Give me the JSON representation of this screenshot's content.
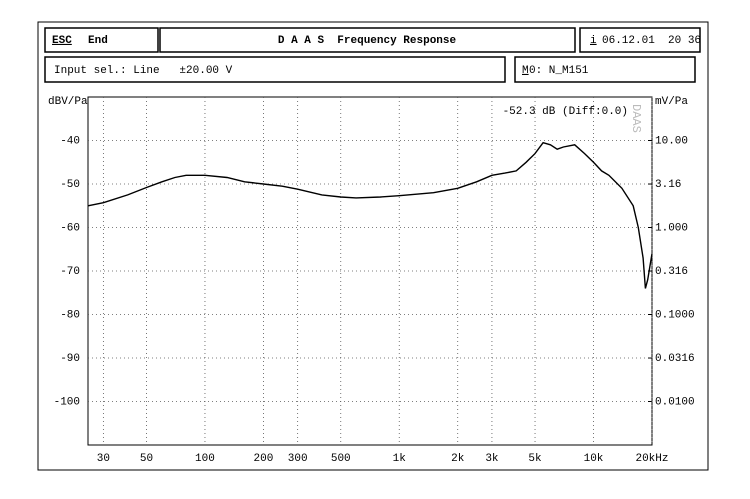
{
  "header": {
    "esc": "ESC",
    "end": "End",
    "title": "D A A S  Frequency Response",
    "info_key": "i",
    "datetime": "06.12.01  20 36"
  },
  "status": {
    "input": "Input sel.: Line   ±20.00 V",
    "memory_key": "M",
    "memory": "0: N_M151"
  },
  "chart_data": {
    "type": "line",
    "y_label": "dBV/Pa",
    "y2_label": "mV/Pa",
    "annotation": "-52.3 dB (Diff:0.0)",
    "watermark": "DAAS",
    "xscale": "log",
    "y2scale": "log",
    "grid": true,
    "color": "#000000",
    "x": [
      25,
      30,
      40,
      50,
      60,
      70,
      80,
      100,
      130,
      160,
      200,
      250,
      300,
      400,
      500,
      600,
      800,
      1000,
      1500,
      2000,
      2500,
      3000,
      3500,
      4000,
      4500,
      5000,
      5500,
      6000,
      6500,
      7000,
      8000,
      9000,
      10000,
      11000,
      12000,
      14000,
      16000,
      17000,
      18000,
      18500,
      19000,
      20000
    ],
    "values": [
      -55,
      -54.3,
      -52.5,
      -50.8,
      -49.5,
      -48.5,
      -48,
      -48,
      -48.5,
      -49.5,
      -50,
      -50.5,
      -51.2,
      -52.5,
      -53,
      -53.2,
      -53,
      -52.7,
      -52,
      -51,
      -49.5,
      -48,
      -47.5,
      -47,
      -45,
      -43,
      -40.5,
      -41,
      -42,
      -41.5,
      -41,
      -43,
      -45,
      -47,
      -48,
      -51,
      -55,
      -60,
      -67,
      -74,
      -72,
      -66
    ],
    "xlim": [
      25,
      20000
    ],
    "xticks": [
      30,
      50,
      100,
      200,
      300,
      500,
      {
        "value": 1000,
        "label": "1k"
      },
      {
        "value": 2000,
        "label": "2k"
      },
      {
        "value": 3000,
        "label": "3k"
      },
      {
        "value": 5000,
        "label": "5k"
      },
      {
        "value": 10000,
        "label": "10k"
      },
      {
        "value": 20000,
        "label": "20kHz"
      }
    ],
    "ylim": [
      -110,
      -30
    ],
    "yticks": [
      -40,
      -50,
      -60,
      -70,
      -80,
      -90,
      -100
    ],
    "y2lim": [
      0.003162,
      31.62
    ],
    "y2ticks": [
      {
        "value": 10,
        "label": "10.00"
      },
      3.16,
      {
        "value": 1,
        "label": "1.000"
      },
      0.316,
      {
        "value": 0.1,
        "label": "0.1000"
      },
      0.0316,
      {
        "value": 0.01,
        "label": "0.0100"
      }
    ]
  }
}
